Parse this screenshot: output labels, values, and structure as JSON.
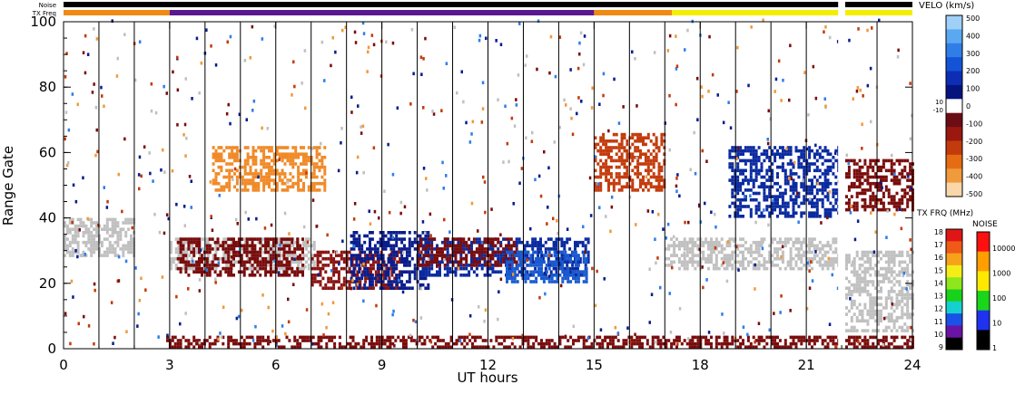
{
  "header": {
    "noise_label": "Noise",
    "txfreq_label": "TX Freq"
  },
  "chart_data": {
    "type": "heatmap",
    "xlabel": "UT hours",
    "ylabel": "Range Gate",
    "xlim": [
      0,
      24
    ],
    "ylim": [
      0,
      100
    ],
    "x_ticks": [
      "0",
      "3",
      "6",
      "9",
      "12",
      "15",
      "18",
      "21",
      "24"
    ],
    "y_ticks": [
      "0",
      "20",
      "40",
      "60",
      "80",
      "100"
    ],
    "scan_lines_hours": [
      1,
      2,
      3,
      4,
      5,
      6,
      7,
      8,
      9,
      10,
      11,
      12,
      13,
      14,
      15,
      16,
      17,
      18,
      19,
      20,
      21,
      22,
      23
    ],
    "data_gap_hours": [
      21.9,
      22.1
    ],
    "velocity_scale": {
      "title": "VELO (km/s)",
      "ticks": [
        "500",
        "400",
        "300",
        "200",
        "100",
        "0",
        "-100",
        "-200",
        "-300",
        "-400",
        "-500"
      ],
      "inner_labels": [
        "10",
        "-10"
      ],
      "colors": [
        "#f9d7a8",
        "#ef9a3c",
        "#e56c12",
        "#c33b0c",
        "#9a1810",
        "#6b0d14",
        "#ffffff",
        "#05137e",
        "#0c2db4",
        "#1353d8",
        "#2f7ee8",
        "#5ba8f2",
        "#a0d0f7"
      ]
    },
    "txfreq_scale": {
      "title": "TX FRQ (MHz)",
      "ticks": [
        "18",
        "17",
        "16",
        "15",
        "14",
        "13",
        "12",
        "11",
        "10",
        "9"
      ],
      "colors": [
        "#e01515",
        "#ef5a18",
        "#f6a21a",
        "#f4ee18",
        "#8ee61c",
        "#18d21a",
        "#16d0d0",
        "#1a52e8",
        "#6a14a6",
        "#000000"
      ]
    },
    "noise_scale": {
      "title": "NOISE",
      "ticks": [
        "10000",
        "1000",
        "100",
        "10",
        "1"
      ],
      "colors": [
        "#ff1010",
        "#ff9e00",
        "#ffe900",
        "#1ad61a",
        "#1e32f0",
        "#000000"
      ]
    },
    "txfreq_bar": [
      {
        "from": 0,
        "to": 3,
        "color": "#f08a12"
      },
      {
        "from": 3,
        "to": 15,
        "color": "#5b1790"
      },
      {
        "from": 15,
        "to": 17.2,
        "color": "#f08a12"
      },
      {
        "from": 17.2,
        "to": 21.9,
        "color": "#f4ef00"
      },
      {
        "from": 22.1,
        "to": 24,
        "color": "#f4ef00"
      }
    ],
    "noise_bar": [
      {
        "from": 0,
        "to": 21.9,
        "color": "#000000"
      },
      {
        "from": 22.1,
        "to": 24,
        "color": "#000000"
      }
    ],
    "echo_regions": [
      {
        "t": [
          0,
          2
        ],
        "g": [
          28,
          40
        ],
        "color": "#c0c0c0"
      },
      {
        "t": [
          3,
          7.1
        ],
        "g": [
          24,
          34
        ],
        "color": "#c0c0c0"
      },
      {
        "t": [
          3.2,
          6.8
        ],
        "g": [
          22,
          34
        ],
        "color": "#7a0c0c"
      },
      {
        "t": [
          4.2,
          7.4
        ],
        "g": [
          48,
          62
        ],
        "color": "#f08a28"
      },
      {
        "t": [
          7,
          9.5
        ],
        "g": [
          18,
          30
        ],
        "color": "#8a1412"
      },
      {
        "t": [
          8.1,
          10.3
        ],
        "g": [
          18,
          36
        ],
        "color": "#0a1d8c"
      },
      {
        "t": [
          10,
          14.8
        ],
        "g": [
          22,
          34
        ],
        "color": "#0a2aa0"
      },
      {
        "t": [
          10,
          12.8
        ],
        "g": [
          25,
          34
        ],
        "color": "#7a0c0c"
      },
      {
        "t": [
          12.5,
          14.8
        ],
        "g": [
          20,
          30
        ],
        "color": "#1a5ad0"
      },
      {
        "t": [
          15,
          17
        ],
        "g": [
          48,
          66
        ],
        "color": "#c33b0c"
      },
      {
        "t": [
          17,
          21.9
        ],
        "g": [
          24,
          34
        ],
        "color": "#c0c0c0"
      },
      {
        "t": [
          18.8,
          21.9
        ],
        "g": [
          40,
          62
        ],
        "color": "#0a2aa0"
      },
      {
        "t": [
          22.1,
          24
        ],
        "g": [
          5,
          30
        ],
        "color": "#c0c0c0"
      },
      {
        "t": [
          22.1,
          24
        ],
        "g": [
          42,
          58
        ],
        "color": "#7a0c0c"
      },
      {
        "t": [
          2.9,
          21.9
        ],
        "g": [
          0,
          4
        ],
        "color": "#7a0c0c"
      },
      {
        "t": [
          22.1,
          24
        ],
        "g": [
          0,
          4
        ],
        "color": "#7a0c0c"
      }
    ]
  }
}
